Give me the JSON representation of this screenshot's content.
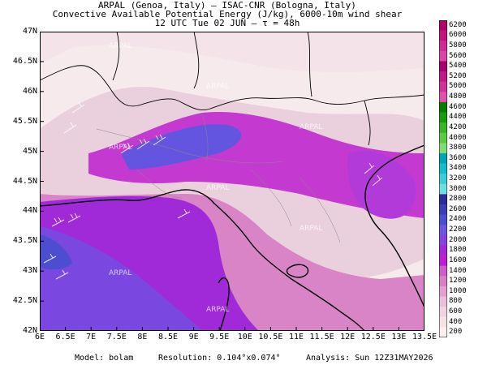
{
  "header": {
    "line1": "ARPAL (Genoa, Italy)  –  ISAC-CNR (Bologna, Italy)",
    "line2": "Convective Available Potential Energy (J/kg), 6000-10m wind shear",
    "line3": "12 UTC Tue 02 JUN  –  τ = 48h"
  },
  "map": {
    "lat_labels": [
      "47N",
      "46.5N",
      "46N",
      "45.5N",
      "45N",
      "44.5N",
      "44N",
      "43.5N",
      "43N",
      "42.5N",
      "42N"
    ],
    "lon_labels": [
      "6E",
      "6.5E",
      "7E",
      "7.5E",
      "8E",
      "8.5E",
      "9E",
      "9.5E",
      "10E",
      "10.5E",
      "11E",
      "11.5E",
      "12E",
      "12.5E",
      "13E",
      "13.5E"
    ],
    "watermark": "ARPAL"
  },
  "legend": {
    "labels": [
      "6200",
      "6000",
      "5800",
      "5600",
      "5400",
      "5200",
      "5000",
      "4800",
      "4600",
      "4400",
      "4200",
      "4000",
      "3800",
      "3600",
      "3400",
      "3200",
      "3000",
      "2800",
      "2600",
      "2400",
      "2200",
      "2000",
      "1800",
      "1600",
      "1400",
      "1200",
      "1000",
      "800",
      "600",
      "400",
      "200"
    ],
    "colors": [
      "#b0006a",
      "#c3137f",
      "#d12a95",
      "#dc44aa",
      "#a8006e",
      "#c01a86",
      "#cf3399",
      "#e050ad",
      "#0a7a00",
      "#1a9a10",
      "#38b32a",
      "#5cc94a",
      "#84db72",
      "#00a7b2",
      "#18bcc8",
      "#3dcdd8",
      "#70dde6",
      "#2c2c96",
      "#3c3cb8",
      "#4d4dd2",
      "#6a55e0",
      "#8a3fe0",
      "#a527d8",
      "#bf1dd0",
      "#cd5ec8",
      "#d880c5",
      "#e1a0cf",
      "#e9bed8",
      "#f0d2e0",
      "#f5e2e7",
      "#f9efef"
    ]
  },
  "footer": {
    "model": "Model: bolam",
    "resolution": "Resolution: 0.104°x0.074°",
    "analysis": "Analysis: Sun 12Z31MAY2026"
  }
}
